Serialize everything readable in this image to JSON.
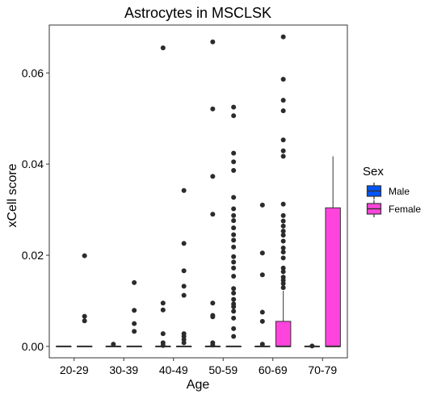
{
  "chart_data": {
    "type": "boxplot",
    "title": "Astrocytes in MSCLSK",
    "xlabel": "Age",
    "ylabel": "xCell score",
    "categories": [
      "20-29",
      "30-39",
      "40-49",
      "50-59",
      "60-69",
      "70-79"
    ],
    "yticks": [
      0.0,
      0.02,
      0.04,
      0.06
    ],
    "ytick_labels": [
      "0.00",
      "0.02",
      "0.04",
      "0.06"
    ],
    "ylim": [
      -0.0025,
      0.0705
    ],
    "grid": false,
    "legend": {
      "title": "Sex",
      "placement": "right",
      "entries": [
        {
          "name": "Male",
          "color": "#0055ff"
        },
        {
          "name": "Female",
          "color": "#ff44dd"
        }
      ]
    },
    "series": [
      {
        "name": "Male",
        "color": "#0055ff",
        "boxes": [
          {
            "category": "20-29",
            "q1": 0,
            "median": 0,
            "q3": 0,
            "whisker_low": 0,
            "whisker_high": 0,
            "outliers": []
          },
          {
            "category": "30-39",
            "q1": 0,
            "median": 0,
            "q3": 0,
            "whisker_low": 0,
            "whisker_high": 0,
            "outliers": [
              0.0005
            ]
          },
          {
            "category": "40-49",
            "q1": 0,
            "median": 0,
            "q3": 0,
            "whisker_low": 0,
            "whisker_high": 0,
            "outliers": [
              0.0655,
              0.0095,
              0.008,
              0.0028,
              0.0008,
              0.0002
            ]
          },
          {
            "category": "50-59",
            "q1": 0,
            "median": 0,
            "q3": 0,
            "whisker_low": 0,
            "whisker_high": 0,
            "outliers": [
              0.0668,
              0.0521,
              0.0373,
              0.029,
              0.0095,
              0.0068,
              0.0065,
              0.0008,
              0.0003
            ]
          },
          {
            "category": "60-69",
            "q1": 0,
            "median": 0,
            "q3": 0,
            "whisker_low": 0,
            "whisker_high": 0,
            "outliers": [
              0.031,
              0.0205,
              0.0157,
              0.0075,
              0.0055,
              0.0005
            ]
          },
          {
            "category": "70-79",
            "q1": 0,
            "median": 0,
            "q3": 0,
            "whisker_low": 0,
            "whisker_high": 0,
            "outliers": [
              0.0001
            ]
          }
        ]
      },
      {
        "name": "Female",
        "color": "#ff44dd",
        "boxes": [
          {
            "category": "20-29",
            "q1": 0,
            "median": 0,
            "q3": 0,
            "whisker_low": 0,
            "whisker_high": 0,
            "outliers": [
              0.0199,
              0.0066,
              0.0056
            ]
          },
          {
            "category": "30-39",
            "q1": 0,
            "median": 0,
            "q3": 0,
            "whisker_low": 0,
            "whisker_high": 0,
            "outliers": [
              0.014,
              0.0079,
              0.005,
              0.0033
            ]
          },
          {
            "category": "40-49",
            "q1": 0,
            "median": 0,
            "q3": 0,
            "whisker_low": 0,
            "whisker_high": 0,
            "outliers": [
              0.0342,
              0.0226,
              0.0166,
              0.0132,
              0.0112,
              0.0028,
              0.0022,
              0.0015,
              0.0008
            ]
          },
          {
            "category": "50-59",
            "q1": 0,
            "median": 0,
            "q3": 0,
            "whisker_low": 0,
            "whisker_high": 0,
            "outliers": [
              0.0525,
              0.0506,
              0.0424,
              0.0405,
              0.0386,
              0.0327,
              0.0302,
              0.0287,
              0.0276,
              0.026,
              0.0245,
              0.0233,
              0.0218,
              0.0197,
              0.0185,
              0.0172,
              0.0154,
              0.0127,
              0.0117,
              0.0103,
              0.0093,
              0.0087,
              0.0077,
              0.0062,
              0.0039,
              0.0022
            ]
          },
          {
            "category": "60-69",
            "q1": 0,
            "median": 0,
            "q3": 0.0055,
            "whisker_low": 0,
            "whisker_high": 0.0122,
            "outliers": [
              0.0679,
              0.0586,
              0.054,
              0.0517,
              0.0453,
              0.0429,
              0.0417,
              0.0312,
              0.0287,
              0.0275,
              0.0264,
              0.0253,
              0.0244,
              0.0231,
              0.0216,
              0.0207,
              0.0194,
              0.0172,
              0.0164,
              0.0152,
              0.0145,
              0.0138,
              0.0129
            ]
          },
          {
            "category": "70-79",
            "q1": 0,
            "median": 0,
            "q3": 0.0304,
            "whisker_low": 0,
            "whisker_high": 0.0417,
            "outliers": []
          }
        ]
      }
    ]
  }
}
